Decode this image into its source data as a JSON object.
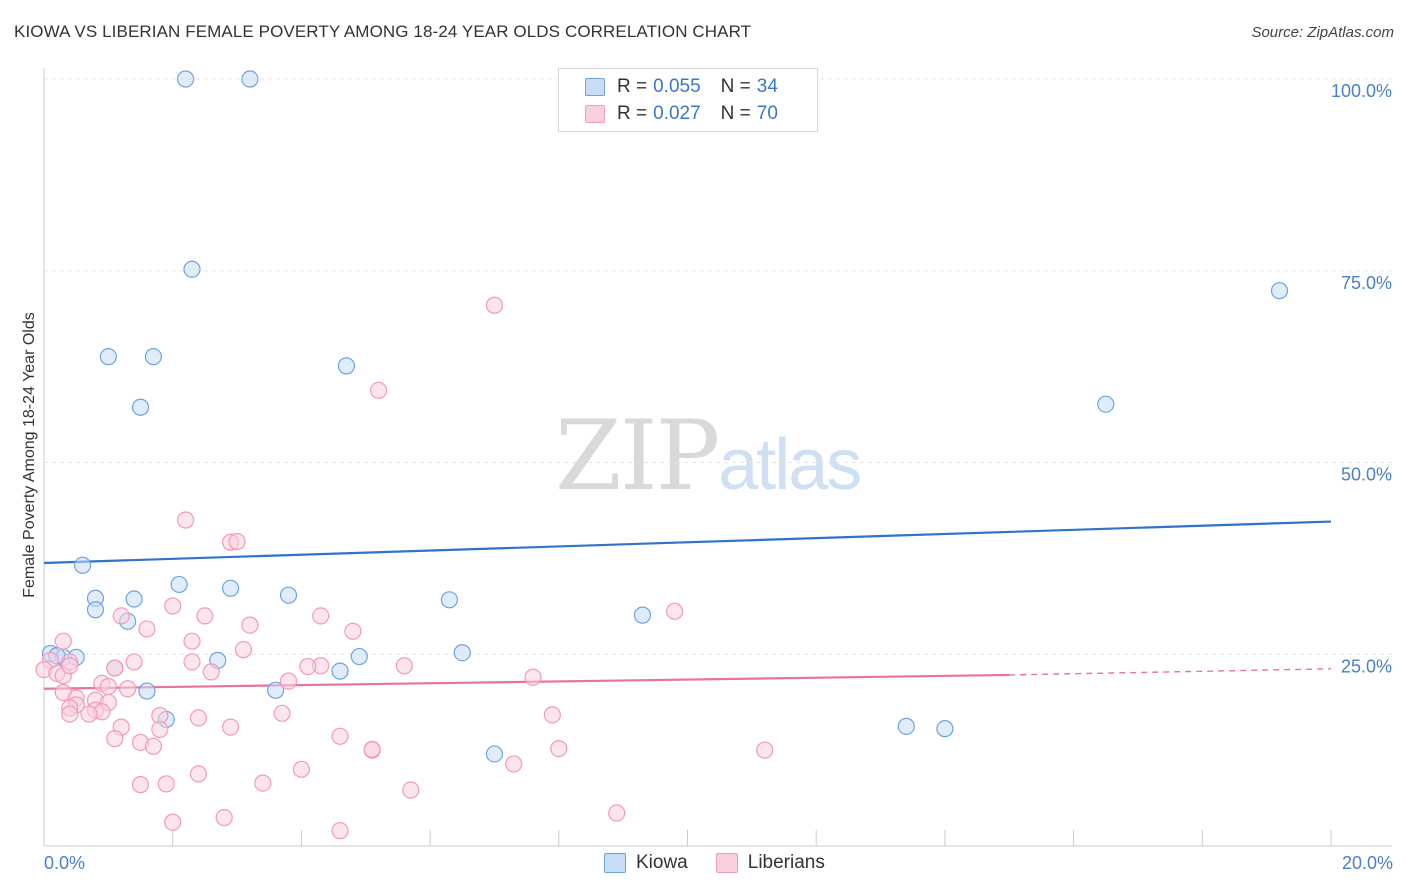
{
  "title": "KIOWA VS LIBERIAN FEMALE POVERTY AMONG 18-24 YEAR OLDS CORRELATION CHART",
  "source": "Source: ZipAtlas.com",
  "watermark": {
    "zip": "ZIP",
    "atlas": "atlas"
  },
  "legend": [
    {
      "r_label": "R = ",
      "r_value": "0.055",
      "n_label": "N = ",
      "n_value": "34",
      "color": "#6fa3e0",
      "fill": "#c7dcf5"
    },
    {
      "r_label": "R = ",
      "r_value": "0.027",
      "n_label": "N = ",
      "n_value": "70",
      "color": "#f39ab8",
      "fill": "#fad0de"
    }
  ],
  "bottom_legend": [
    "Kiowa",
    "Liberians"
  ],
  "chart_data": {
    "type": "scatter",
    "ylabel": "Female Poverty Among 18-24 Year Olds",
    "xlim": [
      0,
      20
    ],
    "ylim": [
      0,
      100
    ],
    "x_ticks": [
      "0.0%",
      "20.0%"
    ],
    "y_ticks": [
      {
        "value": 25,
        "label": "25.0%"
      },
      {
        "value": 50,
        "label": "50.0%"
      },
      {
        "value": 75,
        "label": "75.0%"
      },
      {
        "value": 100,
        "label": "100.0%"
      }
    ],
    "series": [
      {
        "name": "Kiowa",
        "color": "#6fa3e0",
        "fill": "#c7dcf5",
        "trend": {
          "x": [
            0,
            20
          ],
          "y": [
            36.9,
            42.3
          ],
          "color": "#2f74cc"
        },
        "points": [
          [
            2.2,
            100
          ],
          [
            3.2,
            100
          ],
          [
            2.3,
            75.2
          ],
          [
            19.2,
            72.4
          ],
          [
            1.0,
            63.8
          ],
          [
            1.7,
            63.8
          ],
          [
            4.7,
            62.6
          ],
          [
            16.5,
            57.6
          ],
          [
            1.5,
            57.2
          ],
          [
            0.6,
            36.6
          ],
          [
            2.1,
            34.1
          ],
          [
            2.9,
            33.6
          ],
          [
            0.8,
            32.3
          ],
          [
            1.4,
            32.2
          ],
          [
            3.8,
            32.7
          ],
          [
            6.3,
            32.1
          ],
          [
            0.8,
            30.8
          ],
          [
            1.3,
            29.3
          ],
          [
            9.3,
            30.1
          ],
          [
            0.1,
            25.1
          ],
          [
            0.3,
            24.6
          ],
          [
            0.5,
            24.6
          ],
          [
            6.5,
            25.2
          ],
          [
            4.9,
            24.7
          ],
          [
            2.7,
            24.2
          ],
          [
            1.1,
            23.2
          ],
          [
            4.6,
            22.8
          ],
          [
            1.6,
            20.2
          ],
          [
            3.6,
            20.3
          ],
          [
            1.9,
            16.5
          ],
          [
            13.4,
            15.6
          ],
          [
            14.0,
            15.3
          ],
          [
            7.0,
            12.0
          ],
          [
            0.2,
            24.8
          ]
        ]
      },
      {
        "name": "Liberians",
        "color": "#f39ab8",
        "fill": "#fad0de",
        "trend": {
          "x": [
            0,
            15
          ],
          "y": [
            20.5,
            22.3
          ],
          "color": "#e8739b",
          "dash_to": [
            20,
            23.1
          ]
        },
        "points": [
          [
            7.0,
            70.5
          ],
          [
            5.2,
            59.4
          ],
          [
            2.2,
            42.5
          ],
          [
            2.9,
            39.6
          ],
          [
            3.0,
            39.7
          ],
          [
            2.0,
            31.3
          ],
          [
            1.2,
            30.0
          ],
          [
            2.5,
            30.0
          ],
          [
            4.3,
            30.0
          ],
          [
            9.8,
            30.6
          ],
          [
            3.2,
            28.8
          ],
          [
            1.6,
            28.3
          ],
          [
            4.8,
            28.0
          ],
          [
            0.3,
            26.7
          ],
          [
            2.3,
            26.7
          ],
          [
            3.1,
            25.6
          ],
          [
            0.1,
            24.2
          ],
          [
            0.4,
            24.0
          ],
          [
            1.4,
            24.0
          ],
          [
            2.3,
            24.0
          ],
          [
            4.3,
            23.5
          ],
          [
            5.6,
            23.5
          ],
          [
            4.1,
            23.4
          ],
          [
            0.0,
            23.0
          ],
          [
            1.1,
            23.2
          ],
          [
            0.2,
            22.5
          ],
          [
            2.6,
            22.7
          ],
          [
            0.3,
            22.2
          ],
          [
            7.6,
            22.0
          ],
          [
            3.8,
            21.5
          ],
          [
            0.9,
            21.2
          ],
          [
            1.3,
            20.5
          ],
          [
            0.3,
            20.0
          ],
          [
            0.5,
            19.3
          ],
          [
            0.8,
            19.0
          ],
          [
            1.0,
            18.7
          ],
          [
            0.5,
            18.4
          ],
          [
            0.4,
            18.0
          ],
          [
            0.8,
            17.7
          ],
          [
            0.9,
            17.5
          ],
          [
            0.4,
            17.2
          ],
          [
            0.7,
            17.2
          ],
          [
            3.7,
            17.3
          ],
          [
            7.9,
            17.1
          ],
          [
            1.8,
            17.0
          ],
          [
            2.4,
            16.7
          ],
          [
            1.2,
            15.5
          ],
          [
            2.9,
            15.5
          ],
          [
            1.8,
            15.2
          ],
          [
            1.1,
            14.0
          ],
          [
            4.6,
            14.3
          ],
          [
            1.5,
            13.5
          ],
          [
            1.7,
            13.0
          ],
          [
            8.0,
            12.7
          ],
          [
            5.1,
            12.5
          ],
          [
            5.1,
            12.6
          ],
          [
            11.2,
            12.5
          ],
          [
            7.3,
            10.7
          ],
          [
            4.0,
            10.0
          ],
          [
            2.4,
            9.4
          ],
          [
            1.5,
            8.0
          ],
          [
            1.9,
            8.1
          ],
          [
            3.4,
            8.2
          ],
          [
            5.7,
            7.3
          ],
          [
            8.9,
            4.3
          ],
          [
            2.8,
            3.7
          ],
          [
            2.0,
            3.1
          ],
          [
            4.6,
            2.0
          ],
          [
            0.4,
            23.5
          ],
          [
            1.0,
            20.8
          ]
        ]
      }
    ]
  }
}
